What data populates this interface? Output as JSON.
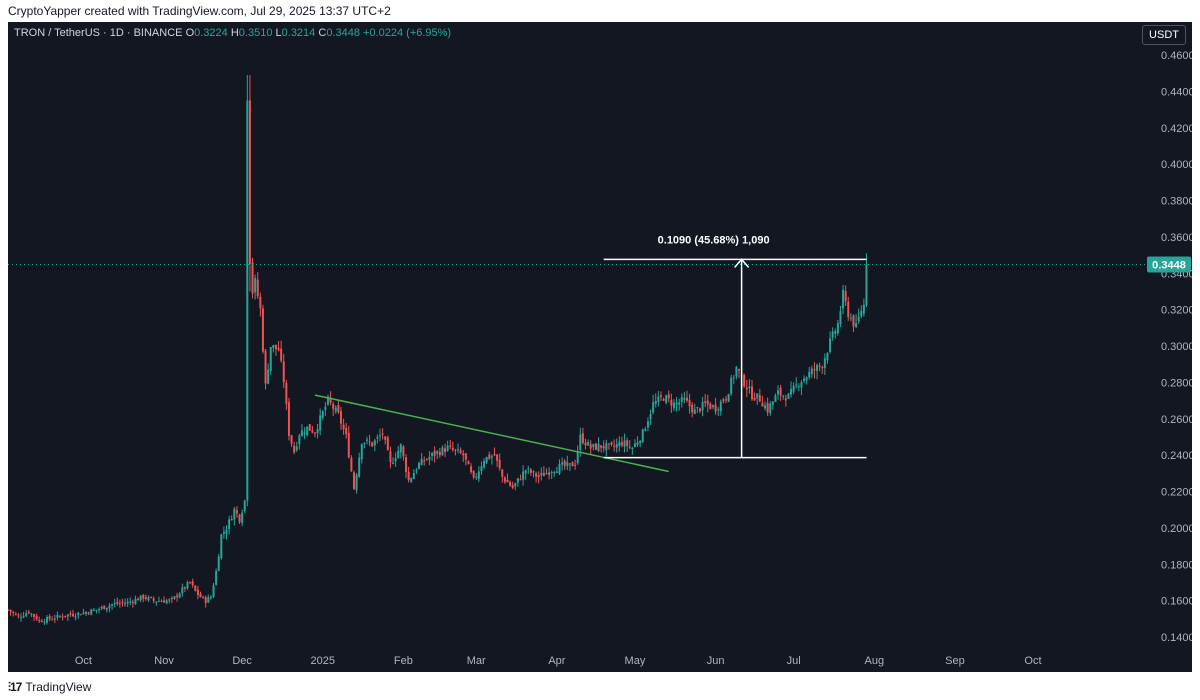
{
  "header": {
    "attribution": "CryptoYapper created with TradingView.com, Jul 29, 2025 13:37 UTC+2"
  },
  "legend": {
    "symbol": "TRON / TetherUS · 1D · BINANCE",
    "open_label": "O",
    "open": "0.3224",
    "high_label": "H",
    "high": "0.3510",
    "low_label": "L",
    "low": "0.3214",
    "close_label": "C",
    "close": "0.3448",
    "change": "+0.0224 (+6.95%)"
  },
  "currency_button": "USDT",
  "footer": {
    "brand": "TradingView"
  },
  "colors": {
    "background": "#131722",
    "up": "#26a69a",
    "down": "#ef5350",
    "trendline": "#4caf50",
    "measure": "#ffffff",
    "axis_text": "#b2b5be"
  },
  "chart_data": {
    "type": "candlestick",
    "title": "TRON / TetherUS · 1D · BINANCE",
    "ylim": [
      0.135,
      0.465
    ],
    "y_ticks": [
      "0.4600",
      "0.4400",
      "0.4200",
      "0.4000",
      "0.3800",
      "0.3600",
      "0.3400",
      "0.3200",
      "0.3000",
      "0.2800",
      "0.2600",
      "0.2400",
      "0.2200",
      "0.2000",
      "0.1800",
      "0.1600",
      "0.1400"
    ],
    "x_ticks": [
      {
        "label": "Oct",
        "date": "2024-10-01"
      },
      {
        "label": "Nov",
        "date": "2024-11-01"
      },
      {
        "label": "Dec",
        "date": "2024-12-01"
      },
      {
        "label": "2025",
        "date": "2025-01-01"
      },
      {
        "label": "Feb",
        "date": "2025-02-01"
      },
      {
        "label": "Mar",
        "date": "2025-03-01"
      },
      {
        "label": "Apr",
        "date": "2025-04-01"
      },
      {
        "label": "May",
        "date": "2025-05-01"
      },
      {
        "label": "Jun",
        "date": "2025-06-01"
      },
      {
        "label": "Jul",
        "date": "2025-07-01"
      },
      {
        "label": "Aug",
        "date": "2025-08-01"
      },
      {
        "label": "Sep",
        "date": "2025-09-01"
      },
      {
        "label": "Oct",
        "date": "2025-10-01"
      }
    ],
    "x_range": [
      "2024-09-02",
      "2025-10-26"
    ],
    "last_price": "0.3448",
    "path": [
      [
        "2024-09-02",
        0.155
      ],
      [
        "2024-09-06",
        0.151
      ],
      [
        "2024-09-10",
        0.154
      ],
      [
        "2024-09-14",
        0.149
      ],
      [
        "2024-09-18",
        0.15
      ],
      [
        "2024-09-24",
        0.152
      ],
      [
        "2024-09-30",
        0.153
      ],
      [
        "2024-10-06",
        0.155
      ],
      [
        "2024-10-12",
        0.158
      ],
      [
        "2024-10-18",
        0.159
      ],
      [
        "2024-10-24",
        0.162
      ],
      [
        "2024-10-28",
        0.16
      ],
      [
        "2024-11-01",
        0.16
      ],
      [
        "2024-11-04",
        0.16
      ],
      [
        "2024-11-08",
        0.166
      ],
      [
        "2024-11-11",
        0.17
      ],
      [
        "2024-11-13",
        0.165
      ],
      [
        "2024-11-15",
        0.162
      ],
      [
        "2024-11-17",
        0.16
      ],
      [
        "2024-11-19",
        0.162
      ],
      [
        "2024-11-21",
        0.176
      ],
      [
        "2024-11-23",
        0.196
      ],
      [
        "2024-11-25",
        0.2
      ],
      [
        "2024-11-28",
        0.21
      ],
      [
        "2024-11-30",
        0.205
      ],
      [
        "2024-12-02",
        0.215
      ],
      [
        "2024-12-03",
        0.448
      ],
      [
        "2024-12-04",
        0.345
      ],
      [
        "2024-12-05",
        0.33
      ],
      [
        "2024-12-06",
        0.335
      ],
      [
        "2024-12-08",
        0.32
      ],
      [
        "2024-12-10",
        0.278
      ],
      [
        "2024-12-12",
        0.3
      ],
      [
        "2024-12-15",
        0.298
      ],
      [
        "2024-12-17",
        0.281
      ],
      [
        "2024-12-19",
        0.252
      ],
      [
        "2024-12-21",
        0.242
      ],
      [
        "2024-12-23",
        0.252
      ],
      [
        "2024-12-26",
        0.255
      ],
      [
        "2024-12-29",
        0.253
      ],
      [
        "2025-01-03",
        0.27
      ],
      [
        "2025-01-07",
        0.262
      ],
      [
        "2025-01-10",
        0.25
      ],
      [
        "2025-01-13",
        0.222
      ],
      [
        "2025-01-16",
        0.248
      ],
      [
        "2025-01-20",
        0.246
      ],
      [
        "2025-01-24",
        0.252
      ],
      [
        "2025-01-27",
        0.235
      ],
      [
        "2025-01-31",
        0.245
      ],
      [
        "2025-02-03",
        0.226
      ],
      [
        "2025-02-07",
        0.235
      ],
      [
        "2025-02-12",
        0.24
      ],
      [
        "2025-02-18",
        0.244
      ],
      [
        "2025-02-24",
        0.24
      ],
      [
        "2025-02-28",
        0.226
      ],
      [
        "2025-03-04",
        0.238
      ],
      [
        "2025-03-08",
        0.24
      ],
      [
        "2025-03-11",
        0.228
      ],
      [
        "2025-03-15",
        0.222
      ],
      [
        "2025-03-20",
        0.232
      ],
      [
        "2025-03-25",
        0.228
      ],
      [
        "2025-03-30",
        0.232
      ],
      [
        "2025-04-03",
        0.234
      ],
      [
        "2025-04-06",
        0.234
      ],
      [
        "2025-04-08",
        0.236
      ],
      [
        "2025-04-10",
        0.25
      ],
      [
        "2025-04-14",
        0.244
      ],
      [
        "2025-04-18",
        0.245
      ],
      [
        "2025-04-22",
        0.244
      ],
      [
        "2025-04-26",
        0.247
      ],
      [
        "2025-04-30",
        0.244
      ],
      [
        "2025-05-04",
        0.252
      ],
      [
        "2025-05-08",
        0.268
      ],
      [
        "2025-05-12",
        0.272
      ],
      [
        "2025-05-16",
        0.268
      ],
      [
        "2025-05-20",
        0.27
      ],
      [
        "2025-05-24",
        0.264
      ],
      [
        "2025-05-28",
        0.268
      ],
      [
        "2025-06-01",
        0.266
      ],
      [
        "2025-06-05",
        0.272
      ],
      [
        "2025-06-09",
        0.288
      ],
      [
        "2025-06-12",
        0.28
      ],
      [
        "2025-06-15",
        0.273
      ],
      [
        "2025-06-18",
        0.271
      ],
      [
        "2025-06-21",
        0.265
      ],
      [
        "2025-06-25",
        0.274
      ],
      [
        "2025-06-29",
        0.272
      ],
      [
        "2025-07-03",
        0.28
      ],
      [
        "2025-07-08",
        0.286
      ],
      [
        "2025-07-12",
        0.29
      ],
      [
        "2025-07-15",
        0.302
      ],
      [
        "2025-07-18",
        0.312
      ],
      [
        "2025-07-20",
        0.328
      ],
      [
        "2025-07-22",
        0.318
      ],
      [
        "2025-07-25",
        0.31
      ],
      [
        "2025-07-27",
        0.32
      ],
      [
        "2025-07-28",
        0.3224
      ],
      [
        "2025-07-29",
        0.3448
      ]
    ],
    "trendline": {
      "from": [
        "2024-12-29",
        0.273
      ],
      "to": [
        "2025-05-14",
        0.231
      ],
      "color": "#4caf50"
    },
    "measure": {
      "label": "0.1090 (45.68%) 1,090",
      "x_from": "2025-04-19",
      "x_to": "2025-07-29",
      "x_arrow": "2025-06-11",
      "low": 0.2386,
      "high": 0.3476
    }
  }
}
